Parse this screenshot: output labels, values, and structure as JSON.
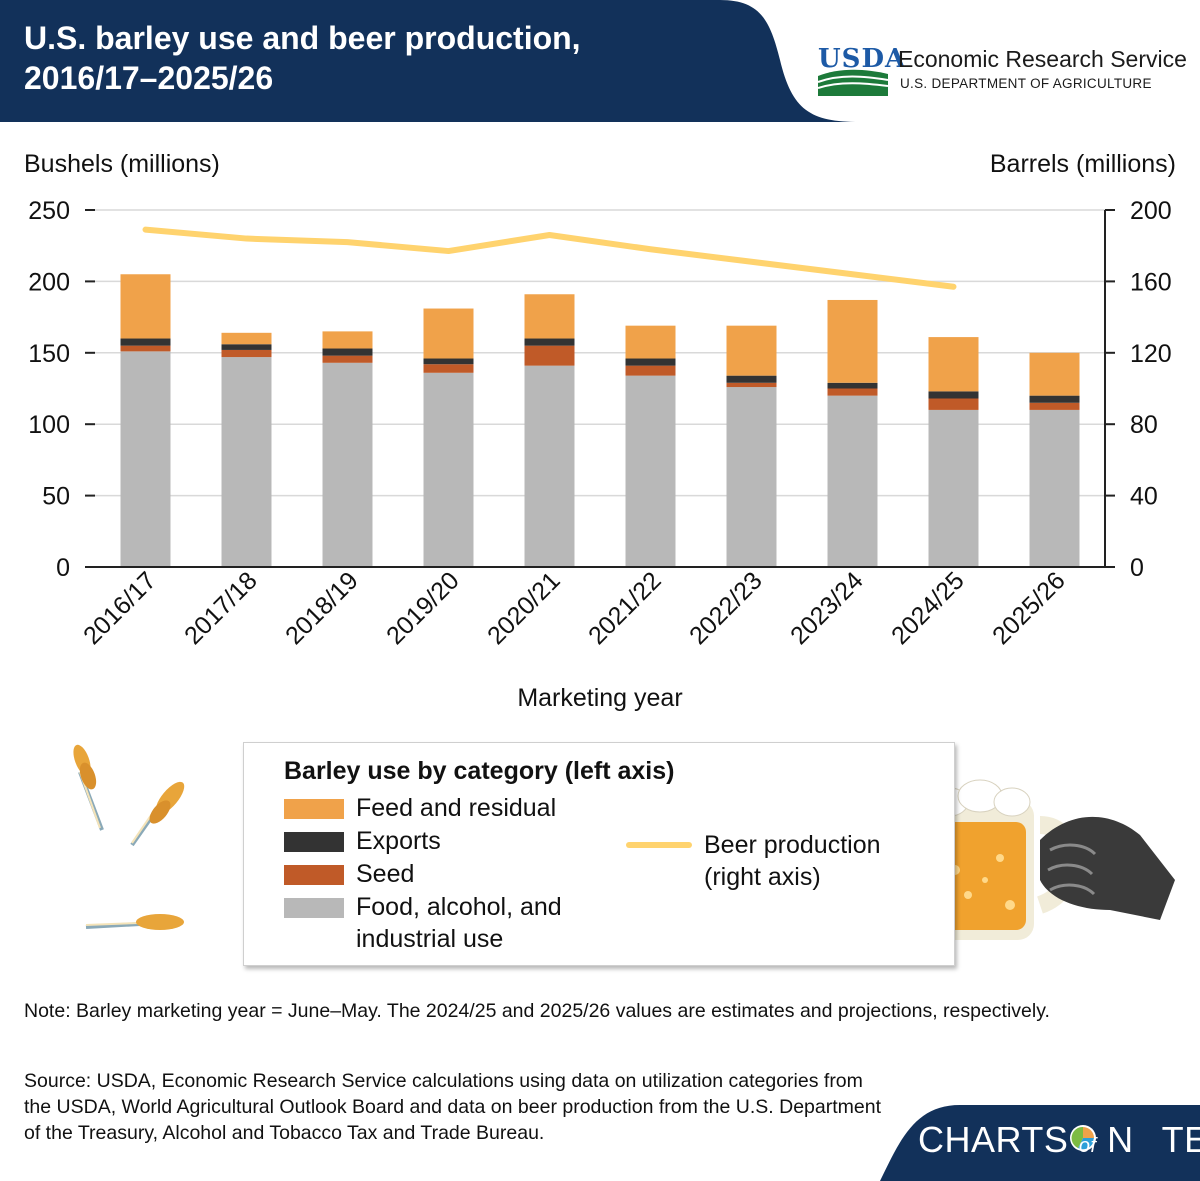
{
  "header": {
    "title_line1": "U.S. barley use and beer production,",
    "title_line2": "2016/17–2025/26",
    "logo_text": "USDA",
    "agency": "Economic Research Service",
    "department": "U.S. DEPARTMENT OF AGRICULTURE",
    "bg_color": "#12315a",
    "accent_color": "#2d6fb2"
  },
  "chart_data": {
    "type": "bar",
    "stacked": true,
    "categories": [
      "2016/17",
      "2017/18",
      "2018/19",
      "2019/20",
      "2020/21",
      "2021/22",
      "2022/23",
      "2023/24",
      "2024/25",
      "2025/26"
    ],
    "xlabel": "Marketing year",
    "ylabel": "Bushels (millions)",
    "ylabel_right": "Barrels (millions)",
    "ylim": [
      0,
      250
    ],
    "yticks": [
      0,
      50,
      100,
      150,
      200,
      250
    ],
    "ylim_right": [
      0,
      200
    ],
    "yticks_right": [
      0,
      40,
      80,
      120,
      160,
      200
    ],
    "grid": true,
    "series": [
      {
        "name": "Food, alcohol, and industrial use",
        "color": "#b8b8b8",
        "axis": "left",
        "values": [
          151,
          147,
          143,
          136,
          141,
          134,
          126,
          120,
          110,
          110
        ]
      },
      {
        "name": "Seed",
        "color": "#c05a28",
        "axis": "left",
        "values": [
          4,
          5,
          5,
          6,
          14,
          7,
          3,
          5,
          8,
          5
        ]
      },
      {
        "name": "Exports",
        "color": "#333333",
        "axis": "left",
        "values": [
          5,
          4,
          5,
          4,
          5,
          5,
          5,
          4,
          5,
          5
        ]
      },
      {
        "name": "Feed and residual",
        "color": "#f0a24a",
        "axis": "left",
        "values": [
          45,
          8,
          12,
          35,
          31,
          23,
          35,
          58,
          38,
          30
        ]
      },
      {
        "name": "Beer production (right axis)",
        "type": "line",
        "color": "#ffd36e",
        "axis": "right",
        "values": [
          189,
          184,
          182,
          177,
          186,
          178,
          171,
          164,
          157,
          null
        ]
      }
    ]
  },
  "legend": {
    "heading": "Barley use by category (left axis)",
    "feed": "Feed and residual",
    "exports": "Exports",
    "seed": "Seed",
    "food_line1": "Food, alcohol, and",
    "food_line2": "industrial use",
    "beer_line1": "Beer production",
    "beer_line2": "(right axis)"
  },
  "note": "Note: Barley marketing year = June–May. The 2024/25 and 2025/26 values are estimates and projections, respectively.",
  "source": "Source: USDA, Economic Research Service calculations using data on utilization categories from the USDA, World Agricultural Outlook Board and data on beer production from the U.S. Department of the Treasury, Alcohol and Tobacco Tax and Trade Bureau.",
  "footer": {
    "brand_left": "CHARTS",
    "brand_of": "of",
    "brand_right": "N",
    "brand_end": "TE"
  },
  "icons": [
    "wheat-icon",
    "beer-mug-icon",
    "hand-icon",
    "usda-logo-icon",
    "pie-icon"
  ]
}
